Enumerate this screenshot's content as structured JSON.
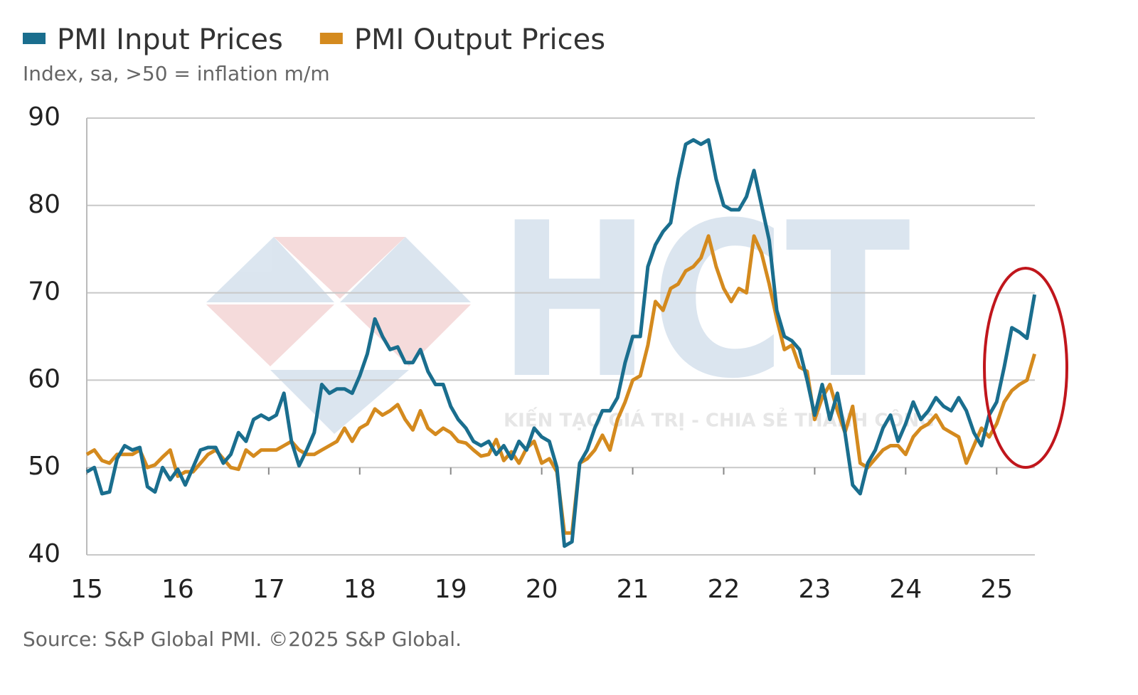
{
  "chart_data": {
    "type": "line",
    "subtitle": "Index, sa, >50 = inflation m/m",
    "source": "Source: S&P Global PMI. ©2025 S&P Global.",
    "watermark": "HCT",
    "watermark_tagline": "KIẾN TẠO GIÁ TRỊ - CHIA SẺ THÀNH CÔNG",
    "x": [
      15,
      15.083,
      15.167,
      15.25,
      15.333,
      15.417,
      15.5,
      15.583,
      15.667,
      15.75,
      15.833,
      15.917,
      16,
      16.083,
      16.167,
      16.25,
      16.333,
      16.417,
      16.5,
      16.583,
      16.667,
      16.75,
      16.833,
      16.917,
      17,
      17.083,
      17.167,
      17.25,
      17.333,
      17.417,
      17.5,
      17.583,
      17.667,
      17.75,
      17.833,
      17.917,
      18,
      18.083,
      18.167,
      18.25,
      18.333,
      18.417,
      18.5,
      18.583,
      18.667,
      18.75,
      18.833,
      18.917,
      19,
      19.083,
      19.167,
      19.25,
      19.333,
      19.417,
      19.5,
      19.583,
      19.667,
      19.75,
      19.833,
      19.917,
      20,
      20.083,
      20.167,
      20.25,
      20.333,
      20.417,
      20.5,
      20.583,
      20.667,
      20.75,
      20.833,
      20.917,
      21,
      21.083,
      21.167,
      21.25,
      21.333,
      21.417,
      21.5,
      21.583,
      21.667,
      21.75,
      21.833,
      21.917,
      22,
      22.083,
      22.167,
      22.25,
      22.333,
      22.417,
      22.5,
      22.583,
      22.667,
      22.75,
      22.833,
      22.917,
      23,
      23.083,
      23.167,
      23.25,
      23.333,
      23.417,
      23.5,
      23.583,
      23.667,
      23.75,
      23.833,
      23.917,
      24,
      24.083,
      24.167,
      24.25,
      24.333,
      24.417,
      24.5,
      24.583,
      24.667,
      24.75,
      24.833,
      24.917,
      25,
      25.083,
      25.167,
      25.25,
      25.333,
      25.417
    ],
    "series": [
      {
        "name": "PMI Input Prices",
        "color": "#1a6e8e",
        "values": [
          49.5,
          50,
          47,
          47.2,
          51,
          52.5,
          52,
          52.3,
          47.8,
          47.2,
          50,
          48.6,
          49.8,
          48,
          50,
          52,
          52.3,
          52.3,
          50.5,
          51.5,
          54,
          53,
          55.5,
          56,
          55.5,
          56,
          58.5,
          53,
          50.2,
          52,
          54,
          59.5,
          58.5,
          59,
          59,
          58.5,
          60.5,
          63,
          67,
          65,
          63.5,
          63.8,
          62,
          62,
          63.5,
          61,
          59.5,
          59.5,
          57,
          55.5,
          54.5,
          53,
          52.5,
          53,
          51.5,
          52.5,
          51,
          53,
          52,
          54.5,
          53.5,
          53,
          50,
          41,
          41.5,
          50.5,
          52,
          54.5,
          56.5,
          56.5,
          58,
          62,
          65,
          65,
          73,
          75.5,
          77,
          78,
          83,
          87,
          87.5,
          87,
          87.5,
          83,
          80,
          79.5,
          79.5,
          81,
          84,
          80,
          76,
          68,
          65,
          64.5,
          63.5,
          60,
          56,
          59.5,
          55.5,
          58.5,
          54,
          48,
          47,
          50.5,
          52,
          54.5,
          56,
          53,
          55,
          57.5,
          55.5,
          56.5,
          58,
          57,
          56.5,
          58,
          56.5,
          54,
          52.5,
          56,
          57.5,
          61.5,
          66,
          65.5,
          64.8,
          69.8
        ]
      },
      {
        "name": "PMI Output Prices",
        "color": "#d48a1e",
        "values": [
          51.5,
          52,
          50.8,
          50.5,
          51.5,
          51.5,
          51.5,
          52,
          50,
          50.3,
          51.2,
          52,
          49,
          49.5,
          49.5,
          50.5,
          51.5,
          52,
          51,
          50,
          49.8,
          52,
          51.3,
          52,
          52,
          52,
          52.5,
          53,
          52,
          51.5,
          51.5,
          52,
          52.5,
          53,
          54.5,
          53,
          54.5,
          55,
          56.7,
          56,
          56.5,
          57.2,
          55.5,
          54.3,
          56.5,
          54.5,
          53.8,
          54.5,
          54,
          53,
          52.8,
          52,
          51.3,
          51.5,
          53.2,
          50.8,
          51.8,
          50.5,
          52.2,
          53,
          50.5,
          51,
          49.5,
          42.5,
          42.5,
          50.5,
          51,
          52,
          53.7,
          52,
          55.5,
          57.5,
          60,
          60.5,
          64,
          69,
          68,
          70.5,
          71,
          72.5,
          73,
          74,
          76.5,
          73,
          70.5,
          69,
          70.5,
          70,
          76.5,
          74.5,
          71,
          67,
          63.5,
          64,
          61.5,
          61,
          55.5,
          58,
          59.5,
          56.5,
          54,
          57,
          50.5,
          50,
          51,
          52,
          52.5,
          52.5,
          51.5,
          53.5,
          54.5,
          55,
          56,
          54.5,
          54,
          53.5,
          50.5,
          52.5,
          54.5,
          53.5,
          55,
          57.5,
          58.8,
          59.5,
          60,
          63
        ]
      }
    ],
    "xlim": [
      15,
      25.42
    ],
    "xticks": [
      15,
      16,
      17,
      18,
      19,
      20,
      21,
      22,
      23,
      24,
      25
    ],
    "ylim": [
      40,
      90
    ],
    "yticks": [
      40,
      50,
      60,
      70,
      80,
      90
    ],
    "grid": true
  }
}
